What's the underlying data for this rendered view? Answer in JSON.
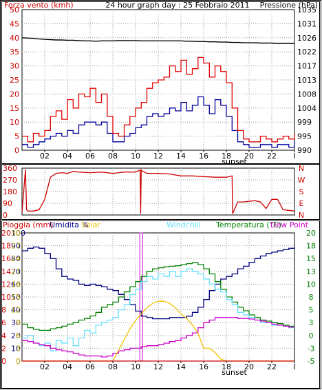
{
  "colors": {
    "wind_avg": "#0000a0",
    "wind_gust": "#e00000",
    "pressure": "#000000",
    "direction": "#cc0000",
    "rain": "#cc0000",
    "humidity": "#000080",
    "solar": "#f0c000",
    "windchill": "#66e0ff",
    "temperature": "#008000",
    "dewpoint": "#cc00cc",
    "grid": "#a0a0a0",
    "axis_text": "#000000"
  },
  "chart_data": [
    {
      "type": "line",
      "title": "24 hour graph day : 25 Febbraio 2011",
      "ylabel_left": "Forza vento (kmh)",
      "ylabel_right": "Pressione (hPa)",
      "x_ticks": [
        "02",
        "04",
        "06",
        "08",
        "10",
        "12",
        "14",
        "16",
        "18",
        "20",
        "22",
        "I"
      ],
      "sunset_label": "sunset",
      "left_ticks": [
        "0",
        "5",
        "10",
        "15",
        "20",
        "25",
        "30",
        "35",
        "40",
        "45",
        "50"
      ],
      "right_ticks": [
        "990",
        "995",
        "999",
        "1004",
        "1008",
        "1013",
        "1017",
        "1022",
        "1026",
        "1031",
        "1035"
      ],
      "ylim_left": [
        0,
        50
      ],
      "ylim_right": [
        990,
        1035
      ],
      "x": [
        0.0,
        0.5,
        1.0,
        1.5,
        2.0,
        2.5,
        3.0,
        3.5,
        4.0,
        4.5,
        5.0,
        5.5,
        6.0,
        6.5,
        7.0,
        7.5,
        8.0,
        8.5,
        9.0,
        9.5,
        10.0,
        10.5,
        11.0,
        11.5,
        12.0,
        12.5,
        13.0,
        13.5,
        14.0,
        14.5,
        15.0,
        15.5,
        16.0,
        16.5,
        17.0,
        17.5,
        18.0,
        18.5,
        19.0,
        19.5,
        20.0,
        20.5,
        21.0,
        21.5,
        22.0,
        22.5,
        23.0,
        23.5,
        24.0
      ],
      "series": [
        {
          "name": "Forza vento (kmh)",
          "role": "wind_avg",
          "values": [
            2,
            1,
            2,
            3,
            4,
            5,
            6,
            5,
            7,
            6,
            9,
            10,
            10,
            9,
            10,
            6,
            3,
            3,
            5,
            6,
            8,
            9,
            12,
            13,
            12,
            13,
            15,
            14,
            17,
            14,
            16,
            19,
            16,
            13,
            18,
            16,
            12,
            7,
            3,
            2,
            1,
            1,
            2,
            2,
            1,
            2,
            2,
            1,
            3
          ]
        },
        {
          "name": "Raffica",
          "role": "wind_gust",
          "values": [
            5,
            3,
            6,
            5,
            7,
            12,
            14,
            11,
            18,
            15,
            20,
            19,
            22,
            17,
            20,
            12,
            6,
            5,
            9,
            12,
            15,
            17,
            22,
            24,
            25,
            26,
            30,
            28,
            32,
            27,
            29,
            33,
            31,
            26,
            30,
            28,
            24,
            15,
            7,
            4,
            3,
            3,
            5,
            4,
            3,
            4,
            5,
            4,
            6
          ]
        },
        {
          "name": "Pressione (hPa)",
          "role": "pressure",
          "values": [
            1026,
            1025.9,
            1025.8,
            1025.6,
            1025.5,
            1025.4,
            1025.3,
            1025.3,
            1025.2,
            1025.2,
            1025.1,
            1025.0,
            1025.0,
            1024.9,
            1025.0,
            1025.0,
            1025.0,
            1025.1,
            1025.1,
            1025.1,
            1025.1,
            1025.0,
            1025.0,
            1025.0,
            1025.0,
            1025.0,
            1025.0,
            1025.0,
            1025.0,
            1024.9,
            1024.9,
            1024.8,
            1024.8,
            1024.7,
            1024.7,
            1024.6,
            1024.6,
            1024.5,
            1024.5,
            1024.4,
            1024.4,
            1024.4,
            1024.3,
            1024.3,
            1024.3,
            1024.2,
            1024.2,
            1024.2,
            1024.2
          ]
        }
      ]
    },
    {
      "type": "line",
      "ylabel_left": "",
      "left_ticks": [
        "0",
        "90",
        "180",
        "270",
        "360"
      ],
      "right_labels": [
        "N",
        "W",
        "S",
        "E",
        "N"
      ],
      "ylim_left": [
        0,
        360
      ],
      "series": [
        {
          "name": "Direzione",
          "role": "direction",
          "x": [
            0.0,
            0.3,
            0.4,
            0.5,
            1.0,
            1.5,
            2.0,
            2.5,
            3.0,
            3.5,
            4.0,
            4.5,
            5.0,
            6.0,
            7.0,
            8.0,
            9.0,
            10.0,
            10.4,
            10.45,
            10.5,
            10.55,
            11.0,
            12.0,
            13.0,
            14.0,
            15.0,
            16.0,
            17.0,
            18.0,
            18.5,
            18.55,
            19.0,
            19.5,
            20.0,
            20.5,
            21.0,
            21.5,
            22.0,
            22.5,
            23.0,
            24.0
          ],
          "values": [
            20,
            350,
            40,
            30,
            30,
            40,
            120,
            290,
            320,
            325,
            320,
            335,
            330,
            325,
            330,
            320,
            330,
            330,
            345,
            10,
            350,
            340,
            320,
            320,
            315,
            300,
            300,
            295,
            290,
            290,
            300,
            10,
            100,
            100,
            105,
            110,
            100,
            50,
            120,
            120,
            40,
            30
          ]
        }
      ]
    },
    {
      "type": "line",
      "legend": [
        {
          "label": "Pioggia (mm)",
          "role": "rain"
        },
        {
          "label": "Umidita %",
          "role": "humidity"
        },
        {
          "label": "Solar",
          "role": "solar"
        },
        {
          "label": "Windchill",
          "role": "windchill"
        },
        {
          "label": "Temperatura (°C)",
          "role": "temperature"
        },
        {
          "label": "Dew Point",
          "role": "dewpoint"
        }
      ],
      "x_ticks": [
        "02",
        "04",
        "06",
        "08",
        "10",
        "12",
        "14",
        "16",
        "18",
        "20",
        "22",
        "I"
      ],
      "sunset_label": "sunset",
      "left_ticks_rain": [
        "0",
        "2",
        "4",
        "6",
        "8",
        "10",
        "12",
        "14",
        "16",
        "18",
        "20"
      ],
      "left_ticks_humidity": [
        "10",
        "20",
        "30",
        "40",
        "50",
        "60",
        "70",
        "80",
        "90",
        "100"
      ],
      "left_ticks_solar": [
        "0",
        "3",
        "6",
        "9",
        "12",
        "15",
        "18",
        "21",
        "24",
        "27",
        "30"
      ],
      "right_ticks": [
        "-5",
        "-3",
        "0",
        "3",
        "5",
        "8",
        "10",
        "13",
        "15",
        "18",
        "20"
      ],
      "ylim_right": [
        -5,
        20
      ],
      "x": [
        0.0,
        0.5,
        1.0,
        1.5,
        2.0,
        2.5,
        3.0,
        3.5,
        4.0,
        4.5,
        5.0,
        5.5,
        6.0,
        6.5,
        7.0,
        7.5,
        8.0,
        8.5,
        9.0,
        9.5,
        10.0,
        10.5,
        11.0,
        11.5,
        12.0,
        12.5,
        13.0,
        13.5,
        14.0,
        14.5,
        15.0,
        15.5,
        16.0,
        16.5,
        17.0,
        17.5,
        18.0,
        18.5,
        19.0,
        19.5,
        20.0,
        20.5,
        21.0,
        21.5,
        22.0,
        22.5,
        23.0,
        23.5,
        24.0
      ],
      "series": [
        {
          "name": "Umidita %",
          "role": "humidity",
          "scale": [
            0,
            100
          ],
          "values": [
            86,
            88,
            89,
            88,
            84,
            80,
            72,
            66,
            64,
            63,
            60,
            59,
            60,
            59,
            58,
            56,
            55,
            52,
            48,
            44,
            39,
            35,
            34,
            33,
            33,
            33,
            34,
            34,
            34,
            35,
            38,
            42,
            48,
            55,
            60,
            64,
            66,
            68,
            72,
            74,
            77,
            80,
            82,
            84,
            85,
            86,
            87,
            88,
            89
          ]
        },
        {
          "name": "Temperatura (°C)",
          "role": "temperature",
          "scale": [
            -5,
            20
          ],
          "values": [
            2.2,
            1.5,
            1.2,
            1.0,
            1.0,
            1.3,
            1.5,
            1.8,
            2.2,
            2.5,
            3.0,
            3.3,
            3.8,
            4.5,
            5.5,
            6.0,
            6.5,
            7.5,
            8.5,
            9.5,
            10.5,
            11.5,
            12.5,
            13.0,
            13.2,
            13.4,
            13.5,
            13.6,
            13.8,
            14.0,
            14.2,
            13.8,
            13.0,
            12.0,
            10.5,
            9.0,
            7.5,
            6.5,
            5.5,
            4.8,
            4.0,
            3.5,
            3.0,
            2.8,
            2.5,
            2.3,
            2.0,
            1.8,
            1.6
          ]
        },
        {
          "name": "Windchill",
          "role": "windchill",
          "scale": [
            -5,
            20
          ],
          "values": [
            -0.5,
            0.0,
            -1.5,
            -2.0,
            -1.5,
            -3.0,
            -1.0,
            -1.5,
            -0.5,
            -2.0,
            -0.5,
            1.0,
            0.5,
            2.0,
            2.5,
            3.0,
            3.5,
            5.0,
            6.0,
            8.0,
            9.0,
            10.5,
            11.5,
            11.0,
            12.0,
            11.5,
            12.5,
            11.5,
            12.5,
            13.0,
            12.5,
            12.0,
            11.0,
            10.0,
            9.0,
            8.5,
            7.0,
            6.0,
            4.5,
            4.0,
            3.5,
            3.0,
            2.5,
            2.5,
            2.0,
            2.0,
            1.8,
            1.5,
            1.5
          ]
        },
        {
          "name": "Dew Point",
          "role": "dewpoint",
          "scale": [
            -5,
            20
          ],
          "values": [
            -1.0,
            -1.2,
            -1.5,
            -1.8,
            -2.0,
            -2.5,
            -2.8,
            -3.0,
            -3.2,
            -3.5,
            -3.8,
            -4.0,
            -4.0,
            -4.0,
            -4.2,
            -4.0,
            -3.5,
            -3.0,
            -2.8,
            -2.5,
            -2.5,
            -2.2,
            -2.0,
            -2.0,
            -1.8,
            -1.5,
            -1.2,
            -1.0,
            -0.5,
            0.0,
            0.5,
            1.5,
            2.5,
            3.0,
            3.5,
            3.5,
            3.5,
            3.5,
            3.3,
            3.3,
            3.2,
            3.0,
            2.8,
            2.5,
            2.2,
            2.0,
            1.8,
            1.6,
            1.5
          ]
        },
        {
          "name": "Solar",
          "role": "solar",
          "scale": [
            0,
            30
          ],
          "values": [
            0,
            0,
            0,
            0,
            0,
            0,
            0,
            0,
            0,
            0,
            0,
            0,
            0,
            0,
            0,
            0,
            0,
            2.5,
            5.0,
            7.5,
            9.5,
            11.0,
            12.5,
            13.5,
            14.0,
            14.0,
            13.5,
            12.5,
            11.0,
            10.0,
            8.5,
            6.5,
            3.0,
            3.0,
            2.0,
            0.5,
            0,
            0,
            0,
            0,
            0,
            0,
            0,
            0,
            0,
            0,
            0,
            0,
            0
          ]
        },
        {
          "name": "Pioggia (mm)",
          "role": "rain",
          "scale": [
            0,
            20
          ],
          "values": [
            0,
            0,
            0,
            0,
            0,
            0,
            0,
            0,
            0,
            0,
            0,
            0,
            0,
            0,
            0,
            0,
            0,
            0,
            0,
            0,
            0,
            0,
            0,
            0,
            0,
            0,
            0,
            0,
            0,
            0,
            0,
            0,
            0,
            0,
            0,
            0,
            0,
            0,
            0,
            0,
            0,
            0,
            0,
            0,
            0,
            0,
            0,
            0,
            0
          ]
        }
      ],
      "markers": [
        {
          "role": "current_time",
          "x": 10.5,
          "color": "#cc33cc"
        }
      ]
    }
  ]
}
